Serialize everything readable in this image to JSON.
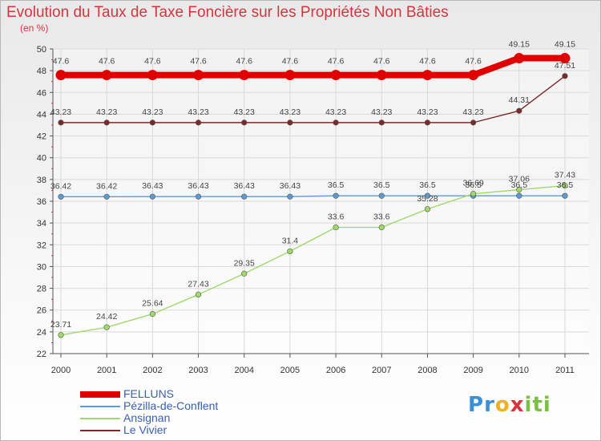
{
  "title": "Evolution du Taux de Taxe Foncière sur les Propriétés Non Bâties",
  "unit_label": "(en %)",
  "logo": {
    "letters": [
      "P",
      "r",
      "o",
      "x",
      "i",
      "t",
      "i"
    ],
    "colors": [
      "#3a8fd6",
      "#3a8fd6",
      "#f0b21c",
      "#d8343d",
      "#7ac142",
      "#7ac142",
      "#7ac142"
    ]
  },
  "chart_data": {
    "type": "line",
    "x": [
      "2000",
      "2001",
      "2002",
      "2003",
      "2004",
      "2005",
      "2006",
      "2007",
      "2008",
      "2009",
      "2010",
      "2011"
    ],
    "ylim": [
      22,
      50
    ],
    "yticks": [
      22,
      24,
      26,
      28,
      30,
      32,
      34,
      36,
      38,
      40,
      42,
      44,
      46,
      48,
      50
    ],
    "grid": true,
    "legend_position": "bottom",
    "series": [
      {
        "name": "FELLUNS",
        "color": "#e00000",
        "bold": true,
        "values": [
          47.6,
          47.6,
          47.6,
          47.6,
          47.6,
          47.6,
          47.6,
          47.6,
          47.6,
          47.6,
          49.15,
          49.15
        ],
        "labels": [
          "47.6",
          "47.6",
          "47.6",
          "47.6",
          "47.6",
          "47.6",
          "47.6",
          "47.6",
          "47.6",
          "47.6",
          "49.15",
          "49.15"
        ]
      },
      {
        "name": "Pézilla-de-Conflent",
        "color": "#5b9bd5",
        "values": [
          36.42,
          36.42,
          36.43,
          36.43,
          36.43,
          36.43,
          36.5,
          36.5,
          36.5,
          36.5,
          36.5,
          36.5
        ],
        "labels": [
          "36.42",
          "36.42",
          "36.43",
          "36.43",
          "36.43",
          "36.43",
          "36.5",
          "36.5",
          "36.5",
          "36.5",
          "36.5",
          "36.5"
        ]
      },
      {
        "name": "Ansignan",
        "color": "#9fd96a",
        "values": [
          23.71,
          24.42,
          25.64,
          27.43,
          29.35,
          31.4,
          33.6,
          33.6,
          35.28,
          36.69,
          37.06,
          37.43
        ],
        "labels": [
          "23.71",
          "24.42",
          "25.64",
          "27.43",
          "29.35",
          "31.4",
          "33.6",
          "33.6",
          "35.28",
          "36.69",
          "37.06",
          "37.43"
        ]
      },
      {
        "name": "Le Vivier",
        "color": "#7a2a2a",
        "values": [
          43.23,
          43.23,
          43.23,
          43.23,
          43.23,
          43.23,
          43.23,
          43.23,
          43.23,
          43.23,
          44.31,
          47.51
        ],
        "labels": [
          "43.23",
          "43.23",
          "43.23",
          "43.23",
          "43.23",
          "43.23",
          "43.23",
          "43.23",
          "43.23",
          "43.23",
          "44.31",
          "47.51"
        ]
      }
    ]
  }
}
